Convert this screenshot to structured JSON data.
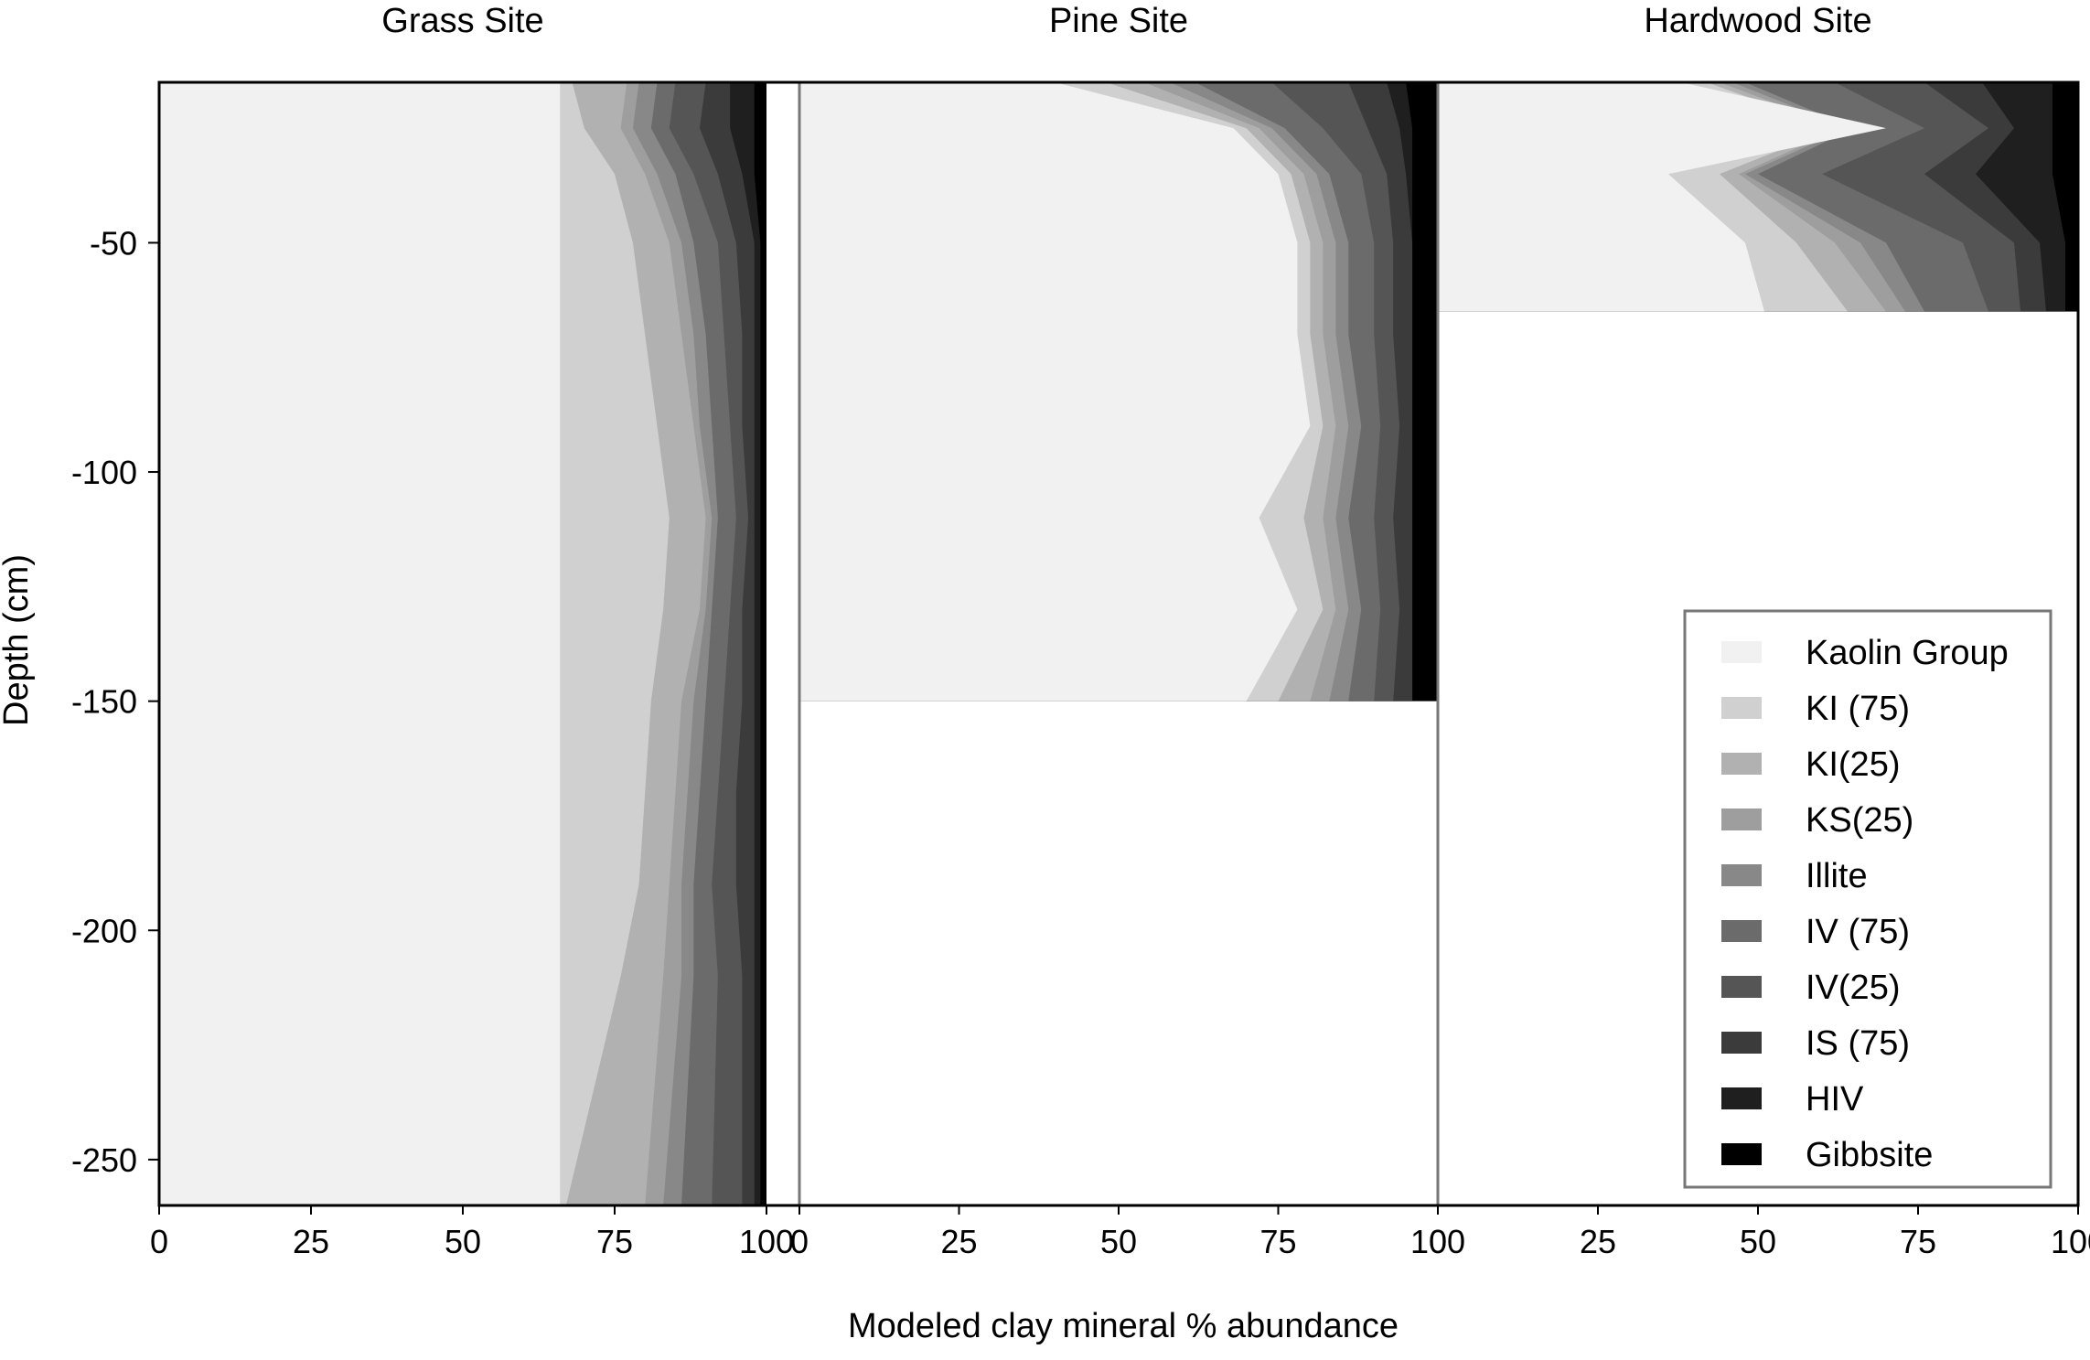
{
  "chart_data": {
    "type": "area",
    "xlabel": "Modeled clay mineral % abundance",
    "ylabel": "Depth (cm)",
    "ylim": [
      -260,
      -15
    ],
    "yticks": [
      -50,
      -100,
      -150,
      -200,
      -250
    ],
    "xlim": [
      0,
      100
    ],
    "xticks": [
      0,
      25,
      50,
      75,
      100
    ],
    "legend_position": "bottom-right",
    "series_names": [
      "Kaolin Group",
      "KI (75)",
      "KI(25)",
      "KS(25)",
      "Illite",
      "IV (75)",
      "IV(25)",
      "IS (75)",
      "HIV",
      "Gibbsite"
    ],
    "colors": [
      "#f1f1f1",
      "#d0d0d0",
      "#b1b1b1",
      "#9e9e9e",
      "#888888",
      "#6b6b6b",
      "#555555",
      "#3b3b3b",
      "#1f1f1f",
      "#000000"
    ],
    "panels": [
      {
        "title": "Grass Site",
        "depths": [
          -15,
          -25,
          -35,
          -50,
          -70,
          -90,
          -110,
          -130,
          -150,
          -170,
          -190,
          -210,
          -260
        ],
        "cumulative": [
          [
            66,
            66,
            66,
            66,
            66,
            66,
            66,
            66,
            66,
            66,
            66,
            66,
            66
          ],
          [
            68,
            70,
            75,
            78,
            80,
            82,
            84,
            83,
            81,
            80,
            79,
            76,
            67
          ],
          [
            77,
            76,
            80,
            84,
            86,
            88,
            90,
            89,
            86,
            85,
            84,
            83,
            80
          ],
          [
            79,
            78,
            82,
            86,
            88,
            89,
            91,
            90,
            88,
            87,
            86,
            86,
            83
          ],
          [
            82,
            81,
            85,
            88,
            90,
            91,
            92,
            91,
            90,
            89,
            88,
            88,
            86
          ],
          [
            85,
            84,
            88,
            92,
            93,
            94,
            95,
            94,
            93,
            92,
            91,
            92,
            91
          ],
          [
            90,
            89,
            92,
            95,
            96,
            96,
            97,
            96,
            96,
            95,
            95,
            96,
            96
          ],
          [
            94,
            94,
            96,
            98,
            98,
            98,
            98,
            98,
            98,
            98,
            98,
            98,
            98
          ],
          [
            98,
            98,
            98,
            99,
            99,
            99,
            99,
            99,
            99,
            99,
            99,
            99,
            99
          ],
          [
            100,
            100,
            100,
            100,
            100,
            100,
            100,
            100,
            100,
            100,
            100,
            100,
            100
          ]
        ]
      },
      {
        "title": "Pine Site",
        "depths": [
          -15,
          -25,
          -35,
          -50,
          -70,
          -90,
          -110,
          -130,
          -150
        ],
        "cumulative": [
          [
            40,
            68,
            75,
            78,
            78,
            80,
            72,
            78,
            70
          ],
          [
            48,
            70,
            77,
            80,
            80,
            82,
            79,
            82,
            75
          ],
          [
            54,
            72,
            79,
            82,
            82,
            84,
            82,
            84,
            80
          ],
          [
            58,
            74,
            81,
            84,
            84,
            86,
            84,
            86,
            83
          ],
          [
            62,
            76,
            83,
            86,
            86,
            88,
            86,
            88,
            86
          ],
          [
            74,
            82,
            88,
            90,
            90,
            91,
            90,
            91,
            90
          ],
          [
            86,
            89,
            92,
            93,
            93,
            94,
            93,
            94,
            93
          ],
          [
            92,
            94,
            95,
            96,
            96,
            96,
            96,
            96,
            96
          ],
          [
            95,
            96,
            96,
            96,
            96,
            96,
            96,
            96,
            96
          ],
          [
            100,
            100,
            100,
            100,
            100,
            100,
            100,
            100,
            100
          ]
        ]
      },
      {
        "title": "Hardwood Site",
        "depths": [
          -15,
          -25,
          -35,
          -50,
          -65
        ],
        "cumulative": [
          [
            38,
            70,
            36,
            48,
            51
          ],
          [
            42,
            62,
            44,
            56,
            64
          ],
          [
            44,
            63,
            47,
            62,
            70
          ],
          [
            46,
            64,
            48,
            66,
            73
          ],
          [
            48,
            65,
            50,
            70,
            76
          ],
          [
            62,
            76,
            60,
            82,
            86
          ],
          [
            76,
            86,
            76,
            90,
            91
          ],
          [
            85,
            90,
            84,
            94,
            95
          ],
          [
            96,
            96,
            96,
            98,
            98
          ],
          [
            100,
            100,
            100,
            100,
            100
          ]
        ]
      }
    ]
  }
}
